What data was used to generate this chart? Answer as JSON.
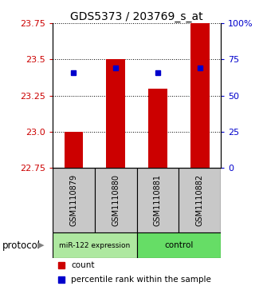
{
  "title": "GDS5373 / 203769_s_at",
  "samples": [
    "GSM1110879",
    "GSM1110880",
    "GSM1110881",
    "GSM1110882"
  ],
  "bar_bottoms": [
    22.75,
    22.75,
    22.75,
    22.75
  ],
  "bar_tops": [
    23.0,
    23.5,
    23.3,
    23.75
  ],
  "blue_y": [
    23.41,
    23.44,
    23.41,
    23.44
  ],
  "ylim": [
    22.75,
    23.75
  ],
  "yticks_left": [
    22.75,
    23.0,
    23.25,
    23.5,
    23.75
  ],
  "yticks_right_vals": [
    0,
    25,
    50,
    75,
    100
  ],
  "yticks_right_labels": [
    "0",
    "25",
    "50",
    "75",
    "100%"
  ],
  "bar_color": "#cc0000",
  "blue_color": "#0000cc",
  "bar_width": 0.45,
  "group1_color": "#aee8a0",
  "group2_color": "#66dd66",
  "label_bg": "#c8c8c8",
  "protocol_label": "protocol"
}
